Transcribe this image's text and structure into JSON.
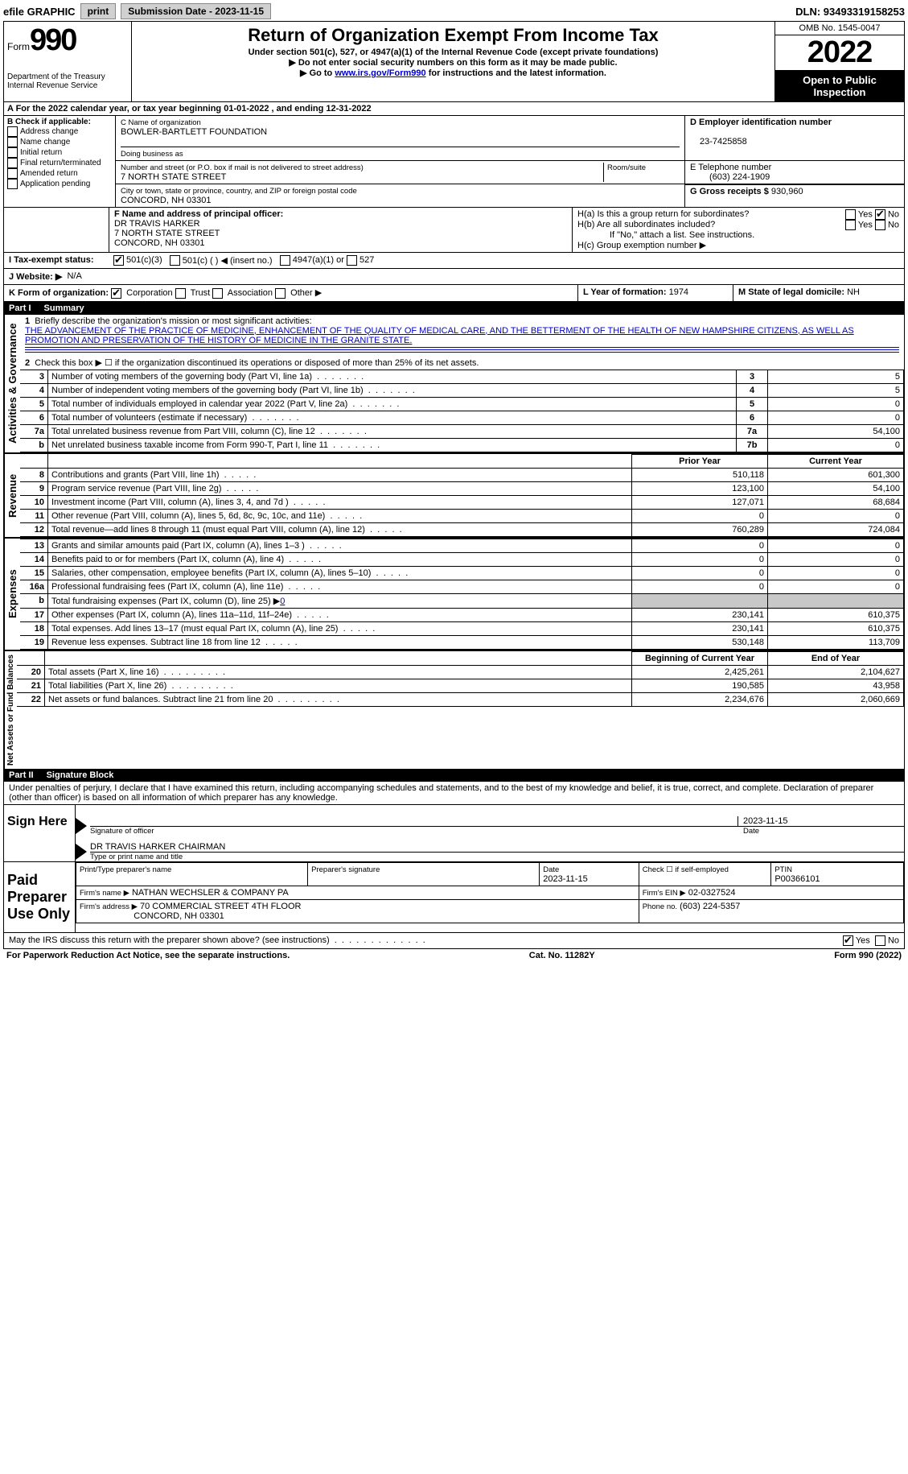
{
  "topbar": {
    "efile": "efile GRAPHIC",
    "print": "print",
    "submission": "Submission Date - 2023-11-15",
    "dln": "DLN: 93493319158253"
  },
  "header": {
    "form_label": "Form",
    "form_num": "990",
    "dept": "Department of the Treasury",
    "irs": "Internal Revenue Service",
    "title": "Return of Organization Exempt From Income Tax",
    "subtitle": "Under section 501(c), 527, or 4947(a)(1) of the Internal Revenue Code (except private foundations)",
    "note1": "▶ Do not enter social security numbers on this form as it may be made public.",
    "note2_pre": "▶ Go to ",
    "note2_link": "www.irs.gov/Form990",
    "note2_post": " for instructions and the latest information.",
    "omb": "OMB No. 1545-0047",
    "year": "2022",
    "inspection": "Open to Public Inspection"
  },
  "sectionA": {
    "text_pre": "A For the 2022 calendar year, or tax year beginning ",
    "begin": "01-01-2022",
    "mid": " , and ending ",
    "end": "12-31-2022"
  },
  "sectionB": {
    "label": "B Check if applicable:",
    "items": [
      "Address change",
      "Name change",
      "Initial return",
      "Final return/terminated",
      "Amended return",
      "Application pending"
    ]
  },
  "sectionC": {
    "name_label": "C Name of organization",
    "name": "BOWLER-BARTLETT FOUNDATION",
    "dba_label": "Doing business as",
    "addr_label": "Number and street (or P.O. box if mail is not delivered to street address)",
    "room_label": "Room/suite",
    "addr": "7 NORTH STATE STREET",
    "city_label": "City or town, state or province, country, and ZIP or foreign postal code",
    "city": "CONCORD, NH  03301"
  },
  "sectionD": {
    "label": "D Employer identification number",
    "ein": "23-7425858"
  },
  "sectionE": {
    "label": "E Telephone number",
    "phone": "(603) 224-1909"
  },
  "sectionG": {
    "label": "G Gross receipts $",
    "amount": "930,960"
  },
  "sectionF": {
    "label": "F Name and address of principal officer:",
    "name": "DR TRAVIS HARKER",
    "addr1": "7 NORTH STATE STREET",
    "addr2": "CONCORD, NH  03301"
  },
  "sectionH": {
    "ha": "H(a)  Is this a group return for subordinates?",
    "hb": "H(b)  Are all subordinates included?",
    "hb_note": "If \"No,\" attach a list. See instructions.",
    "hc": "H(c)  Group exemption number ▶",
    "yes": "Yes",
    "no": "No"
  },
  "sectionI": {
    "label": "I   Tax-exempt status:",
    "o1": "501(c)(3)",
    "o2": "501(c) (   ) ◀ (insert no.)",
    "o3": "4947(a)(1) or",
    "o4": "527"
  },
  "sectionJ": {
    "label": "J   Website: ▶",
    "val": "N/A"
  },
  "sectionK": {
    "label": "K Form of organization:",
    "o1": "Corporation",
    "o2": "Trust",
    "o3": "Association",
    "o4": "Other ▶"
  },
  "sectionL": {
    "label": "L Year of formation:",
    "val": "1974"
  },
  "sectionM": {
    "label": "M State of legal domicile:",
    "val": "NH"
  },
  "part1": {
    "num": "Part I",
    "title": "Summary",
    "side_ag": "Activities & Governance",
    "side_rev": "Revenue",
    "side_exp": "Expenses",
    "side_net": "Net Assets or Fund Balances",
    "l1_label": "Briefly describe the organization's mission or most significant activities:",
    "l1_text": "THE ADVANCEMENT OF THE PRACTICE OF MEDICINE, ENHANCEMENT OF THE QUALITY OF MEDICAL CARE, AND THE BETTERMENT OF THE HEALTH OF NEW HAMPSHIRE CITIZENS, AS WELL AS PROMOTION AND PRESERVATION OF THE HISTORY OF MEDICINE IN THE GRANITE STATE.",
    "l2": "Check this box ▶ ☐ if the organization discontinued its operations or disposed of more than 25% of its net assets.",
    "lines_ag": [
      {
        "n": "3",
        "d": "Number of voting members of the governing body (Part VI, line 1a)",
        "box": "3",
        "v": "5"
      },
      {
        "n": "4",
        "d": "Number of independent voting members of the governing body (Part VI, line 1b)",
        "box": "4",
        "v": "5"
      },
      {
        "n": "5",
        "d": "Total number of individuals employed in calendar year 2022 (Part V, line 2a)",
        "box": "5",
        "v": "0"
      },
      {
        "n": "6",
        "d": "Total number of volunteers (estimate if necessary)",
        "box": "6",
        "v": "0"
      },
      {
        "n": "7a",
        "d": "Total unrelated business revenue from Part VIII, column (C), line 12",
        "box": "7a",
        "v": "54,100"
      },
      {
        "n": "b",
        "d": "Net unrelated business taxable income from Form 990-T, Part I, line 11",
        "box": "7b",
        "v": "0"
      }
    ],
    "col_prior": "Prior Year",
    "col_current": "Current Year",
    "lines_rev": [
      {
        "n": "8",
        "d": "Contributions and grants (Part VIII, line 1h)",
        "p": "510,118",
        "c": "601,300"
      },
      {
        "n": "9",
        "d": "Program service revenue (Part VIII, line 2g)",
        "p": "123,100",
        "c": "54,100"
      },
      {
        "n": "10",
        "d": "Investment income (Part VIII, column (A), lines 3, 4, and 7d )",
        "p": "127,071",
        "c": "68,684"
      },
      {
        "n": "11",
        "d": "Other revenue (Part VIII, column (A), lines 5, 6d, 8c, 9c, 10c, and 11e)",
        "p": "0",
        "c": "0"
      },
      {
        "n": "12",
        "d": "Total revenue—add lines 8 through 11 (must equal Part VIII, column (A), line 12)",
        "p": "760,289",
        "c": "724,084"
      }
    ],
    "lines_exp": [
      {
        "n": "13",
        "d": "Grants and similar amounts paid (Part IX, column (A), lines 1–3 )",
        "p": "0",
        "c": "0"
      },
      {
        "n": "14",
        "d": "Benefits paid to or for members (Part IX, column (A), line 4)",
        "p": "0",
        "c": "0"
      },
      {
        "n": "15",
        "d": "Salaries, other compensation, employee benefits (Part IX, column (A), lines 5–10)",
        "p": "0",
        "c": "0"
      },
      {
        "n": "16a",
        "d": "Professional fundraising fees (Part IX, column (A), line 11e)",
        "p": "0",
        "c": "0"
      }
    ],
    "l16b_pre": "Total fundraising expenses (Part IX, column (D), line 25) ▶",
    "l16b_val": "0",
    "lines_exp2": [
      {
        "n": "17",
        "d": "Other expenses (Part IX, column (A), lines 11a–11d, 11f–24e)",
        "p": "230,141",
        "c": "610,375"
      },
      {
        "n": "18",
        "d": "Total expenses. Add lines 13–17 (must equal Part IX, column (A), line 25)",
        "p": "230,141",
        "c": "610,375"
      },
      {
        "n": "19",
        "d": "Revenue less expenses. Subtract line 18 from line 12",
        "p": "530,148",
        "c": "113,709"
      }
    ],
    "col_begin": "Beginning of Current Year",
    "col_end": "End of Year",
    "lines_net": [
      {
        "n": "20",
        "d": "Total assets (Part X, line 16)",
        "p": "2,425,261",
        "c": "2,104,627"
      },
      {
        "n": "21",
        "d": "Total liabilities (Part X, line 26)",
        "p": "190,585",
        "c": "43,958"
      },
      {
        "n": "22",
        "d": "Net assets or fund balances. Subtract line 21 from line 20",
        "p": "2,234,676",
        "c": "2,060,669"
      }
    ]
  },
  "part2": {
    "num": "Part II",
    "title": "Signature Block",
    "decl": "Under penalties of perjury, I declare that I have examined this return, including accompanying schedules and statements, and to the best of my knowledge and belief, it is true, correct, and complete. Declaration of preparer (other than officer) is based on all information of which preparer has any knowledge.",
    "sign_here": "Sign Here",
    "sig_officer": "Signature of officer",
    "sig_date": "2023-11-15",
    "date_label": "Date",
    "officer_name": "DR TRAVIS HARKER  CHAIRMAN",
    "type_label": "Type or print name and title",
    "paid": "Paid Preparer Use Only",
    "prep_name_label": "Print/Type preparer's name",
    "prep_sig_label": "Preparer's signature",
    "prep_date_label": "Date",
    "prep_date": "2023-11-15",
    "check_self": "Check ☐ if self-employed",
    "ptin_label": "PTIN",
    "ptin": "P00366101",
    "firm_name_label": "Firm's name    ▶",
    "firm_name": "NATHAN WECHSLER & COMPANY PA",
    "firm_ein_label": "Firm's EIN ▶",
    "firm_ein": "02-0327524",
    "firm_addr_label": "Firm's address ▶",
    "firm_addr1": "70 COMMERCIAL STREET 4TH FLOOR",
    "firm_addr2": "CONCORD, NH  03301",
    "firm_phone_label": "Phone no.",
    "firm_phone": "(603) 224-5357",
    "discuss": "May the IRS discuss this return with the preparer shown above? (see instructions)",
    "yes": "Yes",
    "no": "No"
  },
  "footer": {
    "left": "For Paperwork Reduction Act Notice, see the separate instructions.",
    "mid": "Cat. No. 11282Y",
    "right": "Form 990 (2022)"
  }
}
